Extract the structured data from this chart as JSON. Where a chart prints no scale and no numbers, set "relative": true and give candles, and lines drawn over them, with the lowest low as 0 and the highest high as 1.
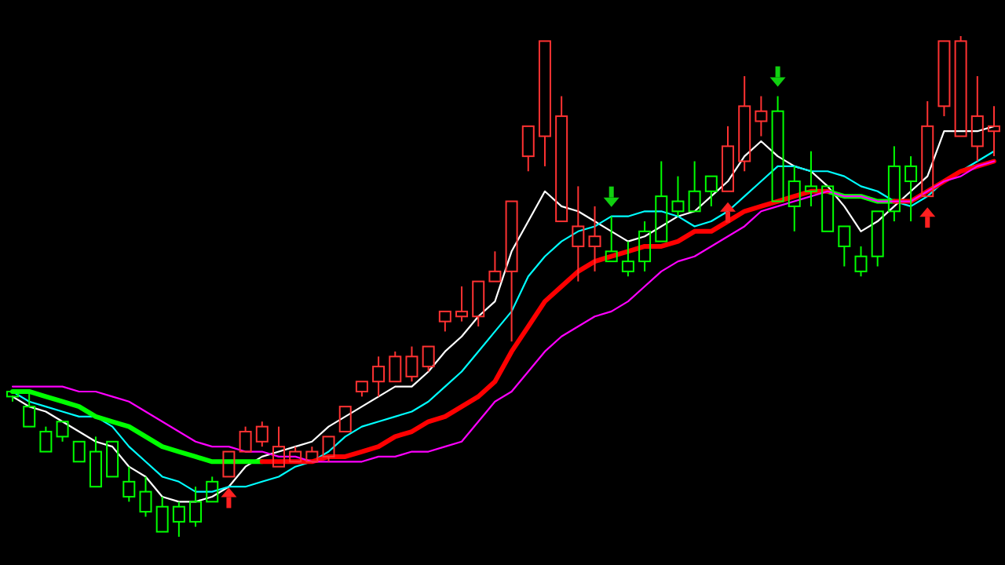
{
  "chart_data": {
    "type": "candlestick",
    "relative": true,
    "categories": [
      null,
      null,
      null,
      null,
      null,
      null,
      null,
      null,
      null,
      null,
      null,
      null,
      null,
      null,
      null,
      null,
      null,
      null,
      null,
      null,
      null,
      null,
      null,
      null,
      null,
      null,
      null,
      null,
      null,
      null,
      null,
      null,
      null,
      null,
      null,
      null,
      null,
      null,
      null,
      null,
      null,
      null,
      null,
      null,
      null,
      null,
      null,
      null,
      null,
      null,
      null,
      null,
      null,
      null,
      null,
      null,
      null,
      null,
      null,
      null
    ],
    "ohlc": [
      [
        0.29,
        0.29,
        0.27,
        0.28
      ],
      [
        0.26,
        0.29,
        0.22,
        0.22
      ],
      [
        0.21,
        0.22,
        0.17,
        0.17
      ],
      [
        0.23,
        0.23,
        0.19,
        0.2
      ],
      [
        0.19,
        0.19,
        0.15,
        0.15
      ],
      [
        0.17,
        0.2,
        0.1,
        0.1
      ],
      [
        0.19,
        0.19,
        0.12,
        0.12
      ],
      [
        0.11,
        0.14,
        0.07,
        0.08
      ],
      [
        0.09,
        0.12,
        0.04,
        0.05
      ],
      [
        0.06,
        0.08,
        0.01,
        0.01
      ],
      [
        0.06,
        0.07,
        0,
        0.03
      ],
      [
        0.07,
        0.1,
        0.02,
        0.03
      ],
      [
        0.11,
        0.12,
        0.07,
        0.07
      ],
      [
        0.12,
        0.17,
        0.12,
        0.17
      ],
      [
        0.17,
        0.22,
        0.17,
        0.21
      ],
      [
        0.19,
        0.23,
        0.18,
        0.22
      ],
      [
        0.14,
        0.22,
        0.14,
        0.18
      ],
      [
        0.15,
        0.18,
        0.15,
        0.17
      ],
      [
        0.15,
        0.18,
        0.15,
        0.17
      ],
      [
        0.16,
        0.2,
        0.15,
        0.2
      ],
      [
        0.21,
        0.26,
        0.21,
        0.26
      ],
      [
        0.29,
        0.31,
        0.28,
        0.31
      ],
      [
        0.31,
        0.36,
        0.28,
        0.34
      ],
      [
        0.31,
        0.37,
        0.31,
        0.36
      ],
      [
        0.32,
        0.38,
        0.31,
        0.36
      ],
      [
        0.34,
        0.38,
        0.33,
        0.38
      ],
      [
        0.43,
        0.45,
        0.41,
        0.45
      ],
      [
        0.44,
        0.5,
        0.43,
        0.45
      ],
      [
        0.44,
        0.51,
        0.42,
        0.51
      ],
      [
        0.51,
        0.57,
        0.51,
        0.53
      ],
      [
        0.53,
        0.67,
        0.39,
        0.67
      ],
      [
        0.76,
        0.82,
        0.73,
        0.82
      ],
      [
        0.8,
        0.99,
        0.74,
        0.99
      ],
      [
        0.63,
        0.88,
        0.63,
        0.84
      ],
      [
        0.58,
        0.7,
        0.51,
        0.62
      ],
      [
        0.58,
        0.66,
        0.53,
        0.6
      ],
      [
        0.57,
        0.64,
        0.55,
        0.55
      ],
      [
        0.55,
        0.59,
        0.52,
        0.53
      ],
      [
        0.61,
        0.63,
        0.53,
        0.55
      ],
      [
        0.68,
        0.75,
        0.59,
        0.59
      ],
      [
        0.67,
        0.72,
        0.64,
        0.65
      ],
      [
        0.69,
        0.75,
        0.65,
        0.65
      ],
      [
        0.72,
        0.72,
        0.66,
        0.69
      ],
      [
        0.69,
        0.82,
        0.69,
        0.78
      ],
      [
        0.75,
        0.92,
        0.73,
        0.86
      ],
      [
        0.83,
        0.88,
        0.8,
        0.85
      ],
      [
        0.85,
        0.88,
        0.67,
        0.67
      ],
      [
        0.71,
        0.74,
        0.61,
        0.66
      ],
      [
        0.7,
        0.77,
        0.66,
        0.69
      ],
      [
        0.7,
        0.7,
        0.61,
        0.61
      ],
      [
        0.62,
        0.62,
        0.54,
        0.58
      ],
      [
        0.56,
        0.58,
        0.52,
        0.53
      ],
      [
        0.65,
        0.65,
        0.54,
        0.56
      ],
      [
        0.74,
        0.78,
        0.63,
        0.65
      ],
      [
        0.74,
        0.76,
        0.63,
        0.71
      ],
      [
        0.68,
        0.87,
        0.68,
        0.82
      ],
      [
        0.86,
        0.99,
        0.84,
        0.99
      ],
      [
        0.8,
        1,
        0.8,
        0.99
      ],
      [
        0.78,
        0.92,
        0.75,
        0.84
      ],
      [
        0.81,
        0.86,
        0.76,
        0.82
      ]
    ],
    "series": [
      {
        "type": "line",
        "color": "#ffffff",
        "values": [
          0.28,
          0.26,
          0.25,
          0.23,
          0.21,
          0.19,
          0.18,
          0.14,
          0.12,
          0.08,
          0.07,
          0.07,
          0.08,
          0.1,
          0.14,
          0.16,
          0.17,
          0.18,
          0.19,
          0.22,
          0.24,
          0.26,
          0.28,
          0.3,
          0.3,
          0.33,
          0.37,
          0.4,
          0.44,
          0.47,
          0.57,
          0.63,
          0.69,
          0.66,
          0.65,
          0.63,
          0.61,
          0.59,
          0.6,
          0.62,
          0.64,
          0.65,
          0.68,
          0.71,
          0.76,
          0.79,
          0.76,
          0.74,
          0.73,
          0.7,
          0.66,
          0.61,
          0.63,
          0.66,
          0.69,
          0.72,
          0.81,
          0.81,
          0.81,
          0.82
        ]
      },
      {
        "type": "line",
        "color": "#00ffff",
        "values": [
          0.29,
          0.27,
          0.26,
          0.25,
          0.24,
          0.24,
          0.22,
          0.18,
          0.15,
          0.12,
          0.11,
          0.09,
          0.09,
          0.1,
          0.1,
          0.11,
          0.12,
          0.14,
          0.15,
          0.17,
          0.2,
          0.22,
          0.23,
          0.24,
          0.25,
          0.27,
          0.3,
          0.33,
          0.37,
          0.41,
          0.45,
          0.52,
          0.56,
          0.59,
          0.61,
          0.62,
          0.64,
          0.64,
          0.65,
          0.65,
          0.64,
          0.62,
          0.63,
          0.65,
          0.68,
          0.71,
          0.74,
          0.74,
          0.73,
          0.73,
          0.72,
          0.7,
          0.69,
          0.67,
          0.66,
          0.68,
          0.71,
          0.73,
          0.75,
          0.77
        ]
      },
      {
        "type": "line",
        "color": "#00ff00",
        "values": [
          0.29,
          0.29,
          0.28,
          0.27,
          0.26,
          0.24,
          0.23,
          0.22,
          0.2,
          0.18,
          0.17,
          0.16,
          0.15,
          0.15,
          0.15,
          0.15,
          null,
          null,
          null,
          null,
          null,
          null,
          null,
          null,
          null,
          null,
          null,
          null,
          null,
          null,
          null,
          null,
          null,
          null,
          null,
          null,
          null,
          null,
          null,
          null,
          null,
          null,
          null,
          null,
          null,
          null,
          null,
          null,
          null,
          0.69,
          0.68,
          0.68,
          0.67,
          0.67,
          null,
          null,
          null,
          null,
          null,
          null
        ]
      },
      {
        "type": "line",
        "color": "#ff0000",
        "values": [
          null,
          null,
          null,
          null,
          null,
          null,
          null,
          null,
          null,
          null,
          null,
          null,
          null,
          null,
          null,
          0.15,
          0.15,
          0.15,
          0.15,
          0.16,
          0.16,
          0.17,
          0.18,
          0.2,
          0.21,
          0.23,
          0.24,
          0.26,
          0.28,
          0.31,
          0.37,
          0.42,
          0.47,
          0.5,
          0.53,
          0.55,
          0.56,
          0.57,
          0.58,
          0.58,
          0.59,
          0.61,
          0.61,
          0.63,
          0.65,
          0.66,
          0.67,
          0.68,
          0.69,
          0.69,
          null,
          null,
          null,
          0.67,
          0.67,
          0.69,
          0.71,
          0.73,
          0.74,
          0.75
        ]
      },
      {
        "type": "line",
        "color": "#ff00ff",
        "values": [
          0.3,
          0.3,
          0.3,
          0.3,
          0.29,
          0.29,
          0.28,
          0.27,
          0.25,
          0.23,
          0.21,
          0.19,
          0.18,
          0.18,
          0.17,
          0.17,
          0.16,
          0.16,
          0.15,
          0.15,
          0.15,
          0.15,
          0.16,
          0.16,
          0.17,
          0.17,
          0.18,
          0.19,
          0.23,
          0.27,
          0.29,
          0.33,
          0.37,
          0.4,
          0.42,
          0.44,
          0.45,
          0.47,
          0.5,
          0.53,
          0.55,
          0.56,
          0.58,
          0.6,
          0.62,
          0.65,
          0.66,
          0.67,
          0.68,
          0.69,
          0.68,
          0.68,
          0.67,
          0.67,
          0.67,
          0.69,
          0.71,
          0.72,
          0.74,
          0.75
        ]
      }
    ]
  }
}
